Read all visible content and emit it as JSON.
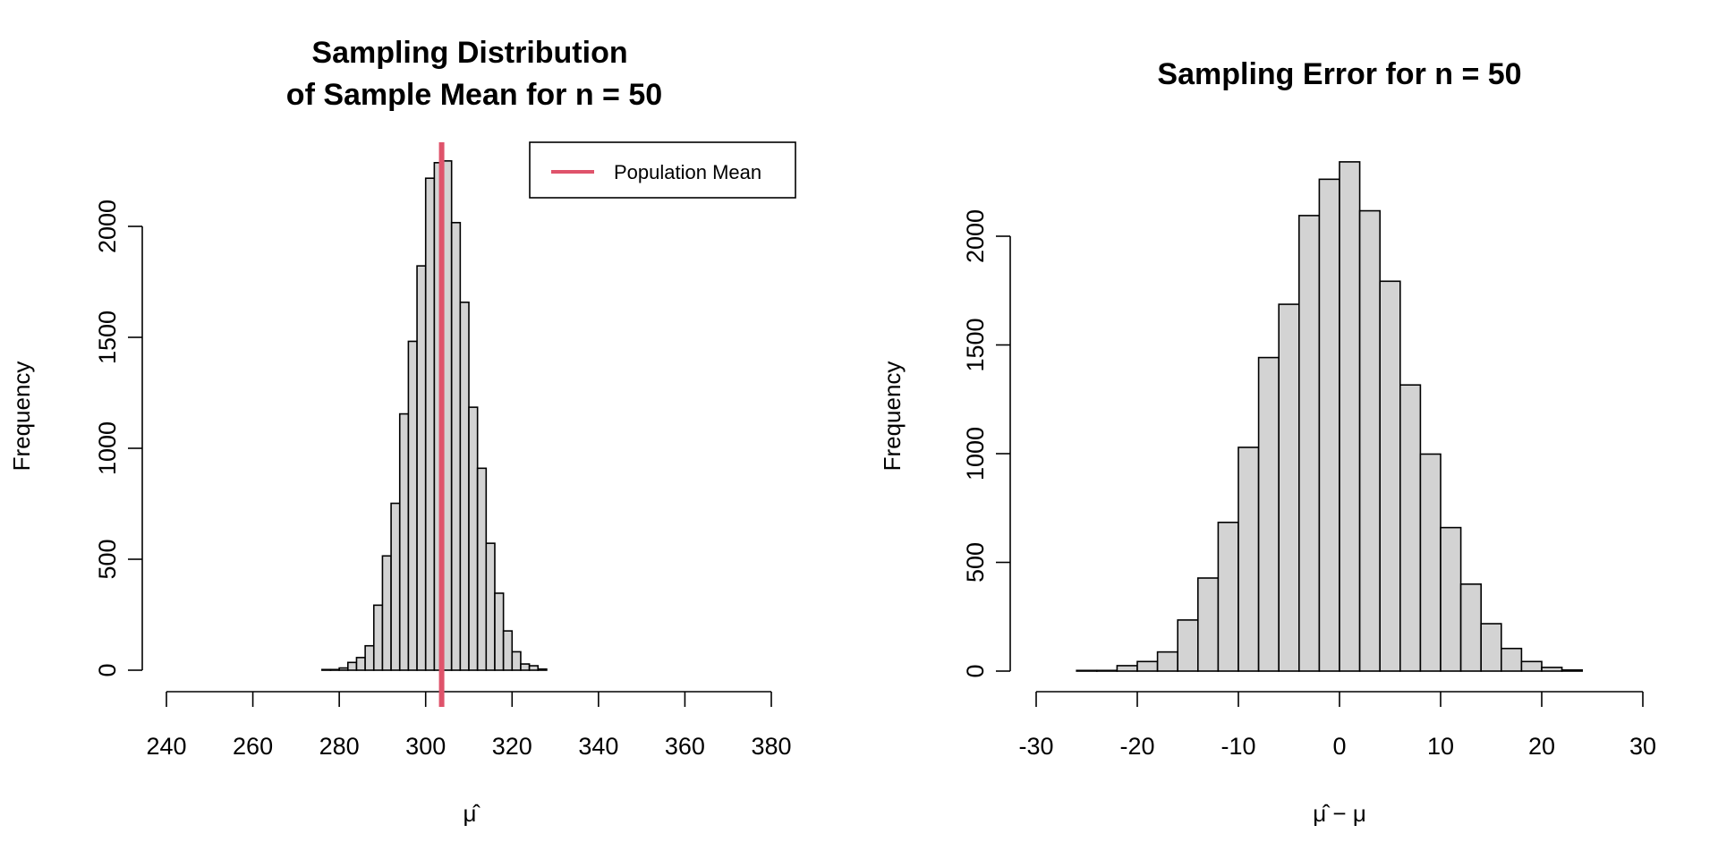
{
  "colors": {
    "bar_fill": "#d3d3d3",
    "population_mean": "#df536b"
  },
  "chart_data": [
    {
      "type": "bar",
      "title_lines": [
        "Sampling Distribution",
        "of Sample Mean for n = 50"
      ],
      "xlabel": "μ̂",
      "ylabel": "Frequency",
      "xlim": [
        240,
        380
      ],
      "ylim": [
        0,
        2000
      ],
      "xticks": [
        "240",
        "260",
        "280",
        "300",
        "320",
        "340",
        "360",
        "380"
      ],
      "xtick_values": [
        240,
        260,
        280,
        300,
        320,
        340,
        360,
        380
      ],
      "yticks": [
        "0",
        "500",
        "1000",
        "1500",
        "2000"
      ],
      "ytick_values": [
        0,
        500,
        1000,
        1500,
        2000
      ],
      "bin_width": 2,
      "bin_start": 274,
      "counts": [
        0,
        3,
        3,
        10,
        35,
        57,
        110,
        293,
        515,
        752,
        1155,
        1482,
        1822,
        2217,
        2287,
        2295,
        2017,
        1658,
        1185,
        910,
        572,
        347,
        177,
        83,
        28,
        20,
        5,
        0,
        0
      ],
      "population_mean": 303.7,
      "legend": {
        "label": "Population Mean",
        "position": "top-right"
      }
    },
    {
      "type": "bar",
      "title_lines": [
        "Sampling Error for n = 50"
      ],
      "xlabel": "μ̂ − μ",
      "ylabel": "Frequency",
      "xlim": [
        -30,
        30
      ],
      "ylim": [
        0,
        2000
      ],
      "xticks": [
        "-30",
        "-20",
        "-10",
        "0",
        "10",
        "20",
        "30"
      ],
      "xtick_values": [
        -30,
        -20,
        -10,
        0,
        10,
        20,
        30
      ],
      "yticks": [
        "0",
        "500",
        "1000",
        "1500",
        "2000"
      ],
      "ytick_values": [
        0,
        500,
        1000,
        1500,
        2000
      ],
      "bin_width": 2,
      "bin_start": -30,
      "counts": [
        0,
        0,
        3,
        3,
        25,
        44,
        88,
        235,
        428,
        684,
        1029,
        1442,
        1687,
        2095,
        2262,
        2342,
        2117,
        1793,
        1316,
        998,
        660,
        400,
        218,
        104,
        44,
        17,
        5,
        0,
        0,
        0
      ]
    }
  ]
}
